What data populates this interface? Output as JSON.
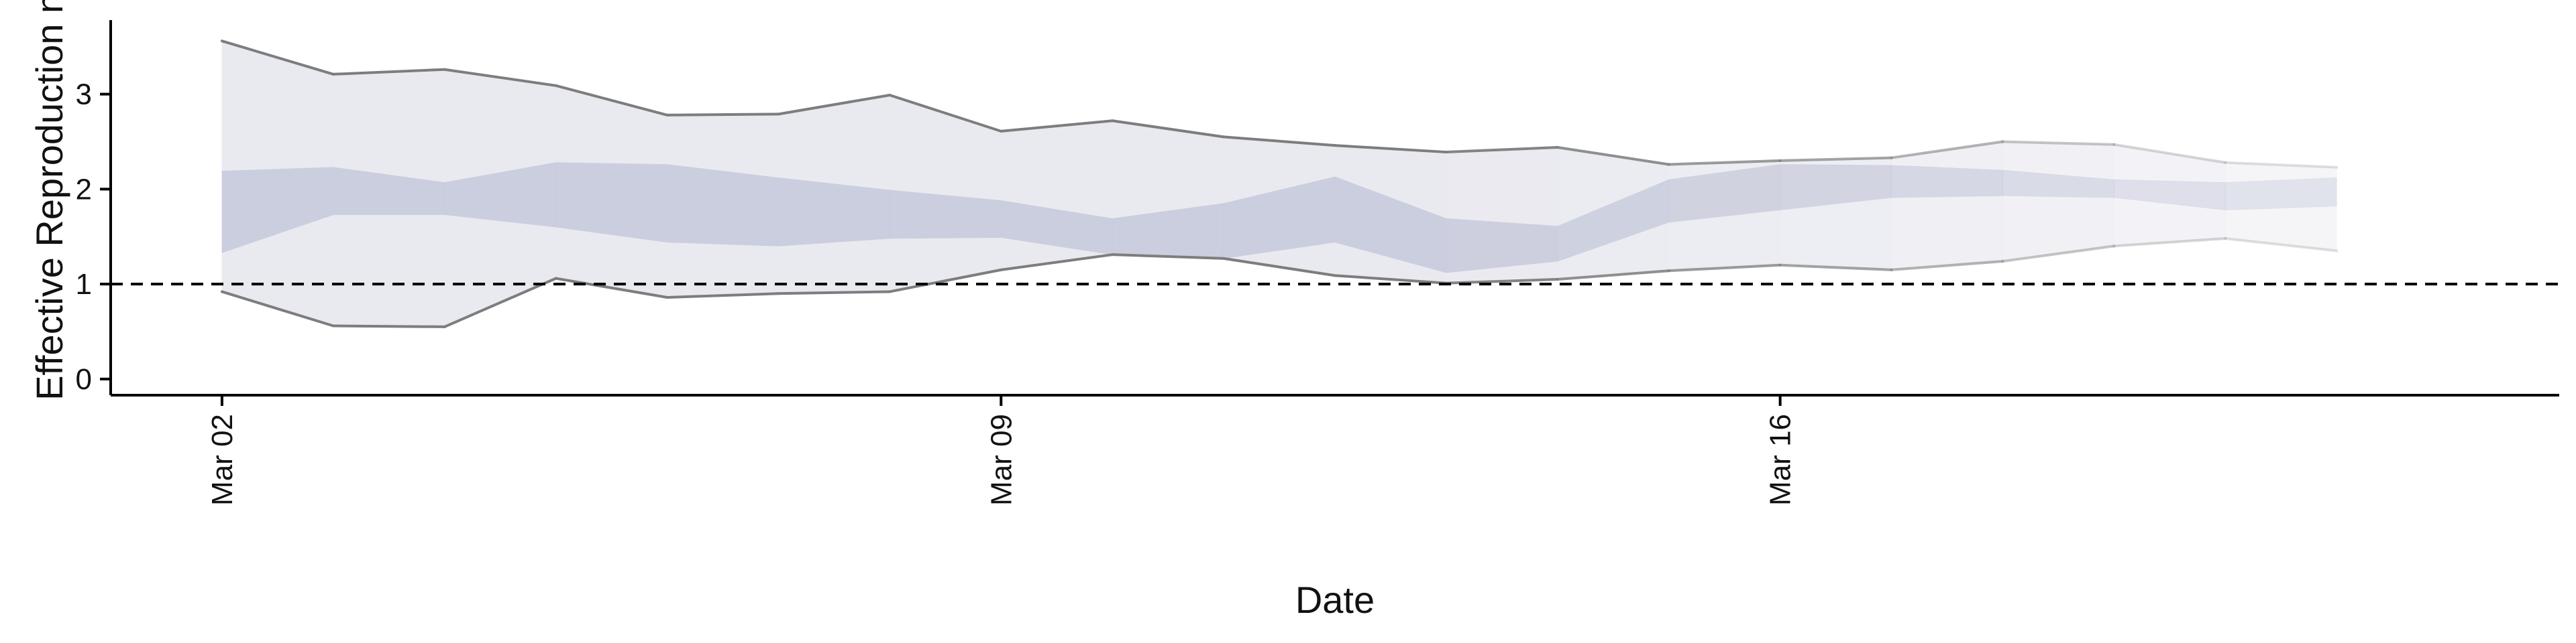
{
  "chart_data": {
    "type": "area",
    "title": "",
    "xlabel": "Date",
    "ylabel": "Effective Reproduction no.",
    "x_type": "date",
    "x": [
      "2020-03-02",
      "2020-03-03",
      "2020-03-04",
      "2020-03-05",
      "2020-03-06",
      "2020-03-07",
      "2020-03-08",
      "2020-03-09",
      "2020-03-10",
      "2020-03-11",
      "2020-03-12",
      "2020-03-13",
      "2020-03-14",
      "2020-03-15",
      "2020-03-16",
      "2020-03-17",
      "2020-03-18",
      "2020-03-19",
      "2020-03-20",
      "2020-03-21"
    ],
    "xticks": [
      "2020-03-02",
      "2020-03-09",
      "2020-03-16"
    ],
    "xtick_labels": [
      "Mar 02",
      "Mar 09",
      "Mar 16"
    ],
    "xlim": [
      "2020-03-01",
      "2020-03-23"
    ],
    "yticks": [
      0,
      1,
      2,
      3
    ],
    "ylim": [
      -0.17,
      3.78
    ],
    "reference_line": {
      "y": 1,
      "style": "dashed"
    },
    "series": [
      {
        "role": "outer_band",
        "upper": [
          3.56,
          3.21,
          3.26,
          3.09,
          2.78,
          2.79,
          2.99,
          2.61,
          2.72,
          2.55,
          2.46,
          2.39,
          2.44,
          2.26,
          2.3,
          2.33,
          2.5,
          2.47,
          2.28,
          2.23
        ],
        "lower": [
          0.92,
          0.56,
          0.55,
          1.06,
          0.86,
          0.9,
          0.92,
          1.15,
          1.31,
          1.27,
          1.09,
          1.01,
          1.05,
          1.14,
          1.2,
          1.15,
          1.24,
          1.4,
          1.48,
          1.35
        ]
      },
      {
        "role": "inner_band",
        "upper": [
          2.19,
          2.23,
          2.07,
          2.28,
          2.26,
          2.12,
          1.99,
          1.88,
          1.69,
          1.85,
          2.13,
          1.69,
          1.61,
          2.1,
          2.26,
          2.25,
          2.2,
          2.1,
          2.07,
          2.12
        ],
        "lower": [
          1.33,
          1.73,
          1.73,
          1.6,
          1.44,
          1.4,
          1.48,
          1.49,
          1.31,
          1.27,
          1.44,
          1.12,
          1.24,
          1.65,
          1.78,
          1.91,
          1.93,
          1.91,
          1.78,
          1.82
        ]
      }
    ],
    "opacity": [
      1,
      1,
      1,
      1,
      1,
      1,
      1,
      1,
      1,
      1,
      1,
      1,
      0.95,
      0.9,
      0.85,
      0.8,
      0.7,
      0.6,
      0.5,
      0.45
    ],
    "colors": {
      "outer_band": "#e9eaf0",
      "inner_band": "#c8cbdc",
      "bound_line": "#7d7d7d",
      "reference_line": "#000000",
      "axis": "#000000"
    },
    "grid": false,
    "legend": "none"
  }
}
